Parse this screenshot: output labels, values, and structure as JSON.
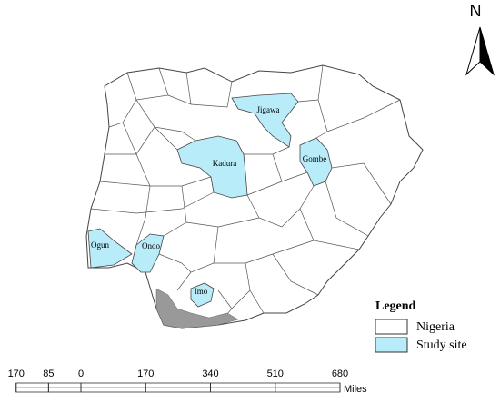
{
  "map": {
    "study_sites": [
      {
        "label": "Jigawa"
      },
      {
        "label": "Kadura"
      },
      {
        "label": "Gombe"
      },
      {
        "label": "Ogun"
      },
      {
        "label": "Ondo"
      },
      {
        "label": "Imo"
      }
    ]
  },
  "legend": {
    "title": "Legend",
    "items": [
      {
        "label": "Nigeria",
        "color": "#ffffff"
      },
      {
        "label": "Study site",
        "color": "#b9ecf9"
      }
    ]
  },
  "north_arrow": {
    "label": "N"
  },
  "scale_bar": {
    "unit": "Miles",
    "ticks": [
      {
        "value": -170,
        "label": "170"
      },
      {
        "value": -85,
        "label": "85"
      },
      0,
      170,
      340,
      510,
      680
    ]
  }
}
